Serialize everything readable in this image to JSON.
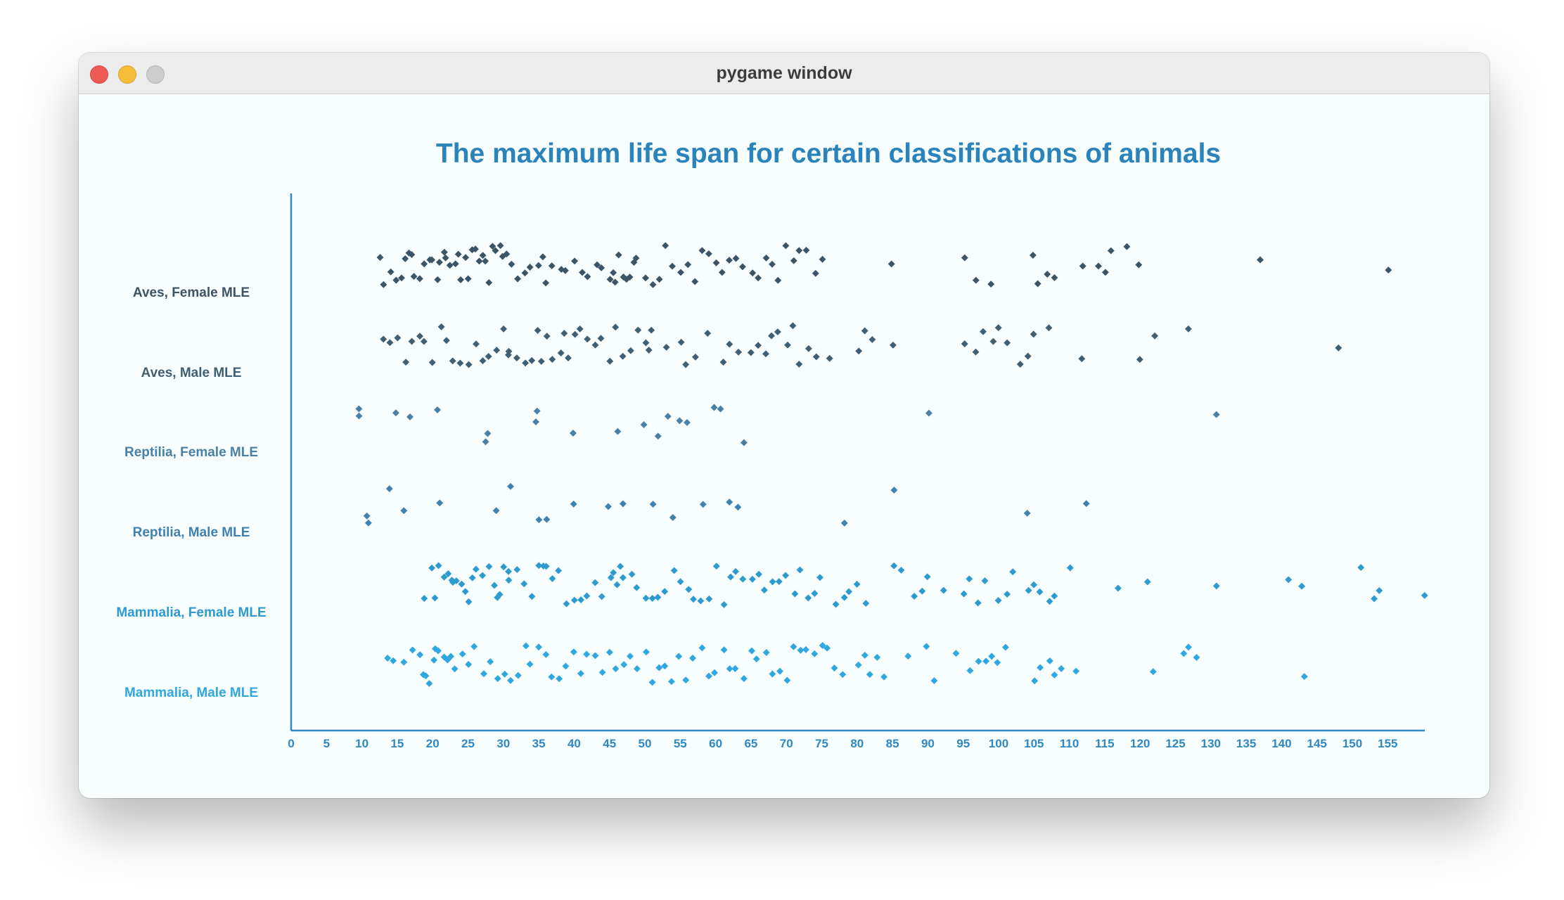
{
  "window": {
    "title": "pygame window"
  },
  "chart_data": {
    "type": "scatter",
    "title": "The maximum life span for certain classifications of animals",
    "xlabel": "",
    "ylabel": "",
    "xlim": [
      0,
      160
    ],
    "xticks": [
      0,
      5,
      10,
      15,
      20,
      25,
      30,
      35,
      40,
      45,
      50,
      55,
      60,
      65,
      70,
      75,
      80,
      85,
      90,
      95,
      100,
      105,
      110,
      115,
      120,
      125,
      130,
      135,
      140,
      145,
      150,
      155
    ],
    "grid": false,
    "categories": [
      "Aves, Female MLE",
      "Aves, Male MLE",
      "Reptilia, Female MLE",
      "Reptilia, Male MLE",
      "Mammalia, Female MLE",
      "Mammalia, Male MLE"
    ],
    "colors": [
      "#3b5567",
      "#3f5f75",
      "#4a7fa6",
      "#3f82b0",
      "#2e9bd0",
      "#2fa7e0"
    ],
    "title_color": "#2a84bb",
    "axis_color": "#2f88c4",
    "series": [
      {
        "name": "Aves, Female MLE",
        "values": [
          12.5,
          13,
          14,
          15,
          15.5,
          16,
          16.5,
          17,
          17.5,
          18,
          19,
          19.5,
          20,
          20.5,
          21,
          21.5,
          22,
          22.5,
          23,
          23.5,
          24,
          24.5,
          25,
          25.5,
          26,
          26.5,
          27,
          27.5,
          28,
          28.5,
          29,
          29.5,
          30,
          30.5,
          31,
          32,
          33,
          34,
          35,
          35.5,
          36,
          37,
          38,
          39,
          40,
          41,
          42,
          43,
          44,
          45,
          45.5,
          46,
          46.5,
          47,
          47.5,
          48,
          48.5,
          49,
          50,
          51,
          52,
          53,
          54,
          55,
          56,
          57,
          58,
          59,
          60,
          61,
          62,
          63,
          64,
          65,
          66,
          67,
          68,
          69,
          70,
          71,
          72,
          73,
          74,
          75,
          85,
          95,
          97,
          99,
          105,
          105.5,
          107,
          108,
          112,
          114,
          115,
          116,
          118,
          120,
          137,
          155
        ]
      },
      {
        "name": "Aves, Male MLE",
        "values": [
          13,
          14,
          15,
          16,
          17,
          18,
          19,
          20,
          21,
          22,
          23,
          24,
          25,
          26,
          27,
          28,
          29,
          30,
          30.5,
          31,
          32,
          33,
          34,
          35,
          35.5,
          36,
          37,
          38,
          38.5,
          39,
          40,
          41,
          42,
          43,
          44,
          45,
          46,
          47,
          48,
          49,
          50,
          50.5,
          51,
          53,
          55,
          56,
          57,
          59,
          61,
          62,
          63,
          65,
          66,
          67,
          68,
          69,
          70,
          71,
          72,
          73,
          74,
          76,
          80,
          81,
          82,
          85,
          95,
          97,
          98,
          99,
          100,
          101,
          103,
          104,
          105,
          107,
          112,
          120,
          122,
          127,
          148
        ]
      },
      {
        "name": "Reptilia, Female MLE",
        "values": [
          9.5,
          9.7,
          15,
          17,
          20.5,
          27.5,
          28,
          34.5,
          35,
          40,
          46,
          50,
          52,
          53.5,
          55,
          56,
          60,
          60.5,
          64,
          90,
          131
        ]
      },
      {
        "name": "Reptilia, Male MLE",
        "values": [
          10.5,
          11,
          14,
          16,
          21,
          29,
          31,
          35,
          36,
          40,
          45,
          47,
          51,
          54,
          58,
          62,
          63,
          78,
          85,
          104,
          112.5
        ]
      },
      {
        "name": "Mammalia, Female MLE",
        "values": [
          19,
          20,
          20.5,
          21,
          21.5,
          22,
          22.5,
          23,
          23.5,
          24,
          24.5,
          25,
          25.5,
          26,
          27,
          28,
          28.5,
          29,
          29.5,
          30,
          30.5,
          31,
          32,
          33,
          34,
          35,
          35.5,
          36,
          37,
          38,
          39,
          40,
          41,
          42,
          43,
          44,
          45,
          45.5,
          46,
          46.5,
          47,
          48,
          49,
          50,
          51,
          52,
          53,
          54,
          55,
          56,
          57,
          58,
          59,
          60,
          61,
          62,
          63,
          64,
          65,
          66,
          67,
          68,
          69,
          70,
          71,
          72,
          73,
          74,
          75,
          77,
          78,
          79,
          80,
          81,
          85,
          86,
          88,
          89,
          90,
          92,
          95,
          96,
          97,
          98,
          100,
          101,
          102,
          104,
          105,
          106,
          107,
          108,
          110,
          117,
          121,
          131,
          141,
          143,
          151,
          153,
          154,
          160
        ]
      },
      {
        "name": "Mammalia, Male MLE",
        "values": [
          13.5,
          14.5,
          16,
          17,
          18,
          18.5,
          19,
          19.5,
          20,
          20.5,
          21,
          21.5,
          22,
          22.5,
          23,
          24,
          25,
          26,
          27,
          28,
          29,
          30,
          31,
          32,
          33,
          34,
          35,
          36,
          37,
          38,
          39,
          40,
          41,
          42,
          43,
          44,
          45,
          46,
          47,
          48,
          49,
          50,
          51,
          52,
          53,
          54,
          55,
          56,
          57,
          58,
          59,
          60,
          61,
          62,
          63,
          64,
          65,
          66,
          67,
          68,
          69,
          70,
          71,
          72,
          73,
          74,
          75,
          76,
          77,
          78,
          80,
          81,
          82,
          83,
          84,
          87,
          90,
          91,
          94,
          96,
          97,
          98,
          99,
          100,
          101,
          105,
          106,
          107,
          108,
          109,
          111,
          122,
          126,
          127,
          128,
          143
        ]
      }
    ]
  }
}
